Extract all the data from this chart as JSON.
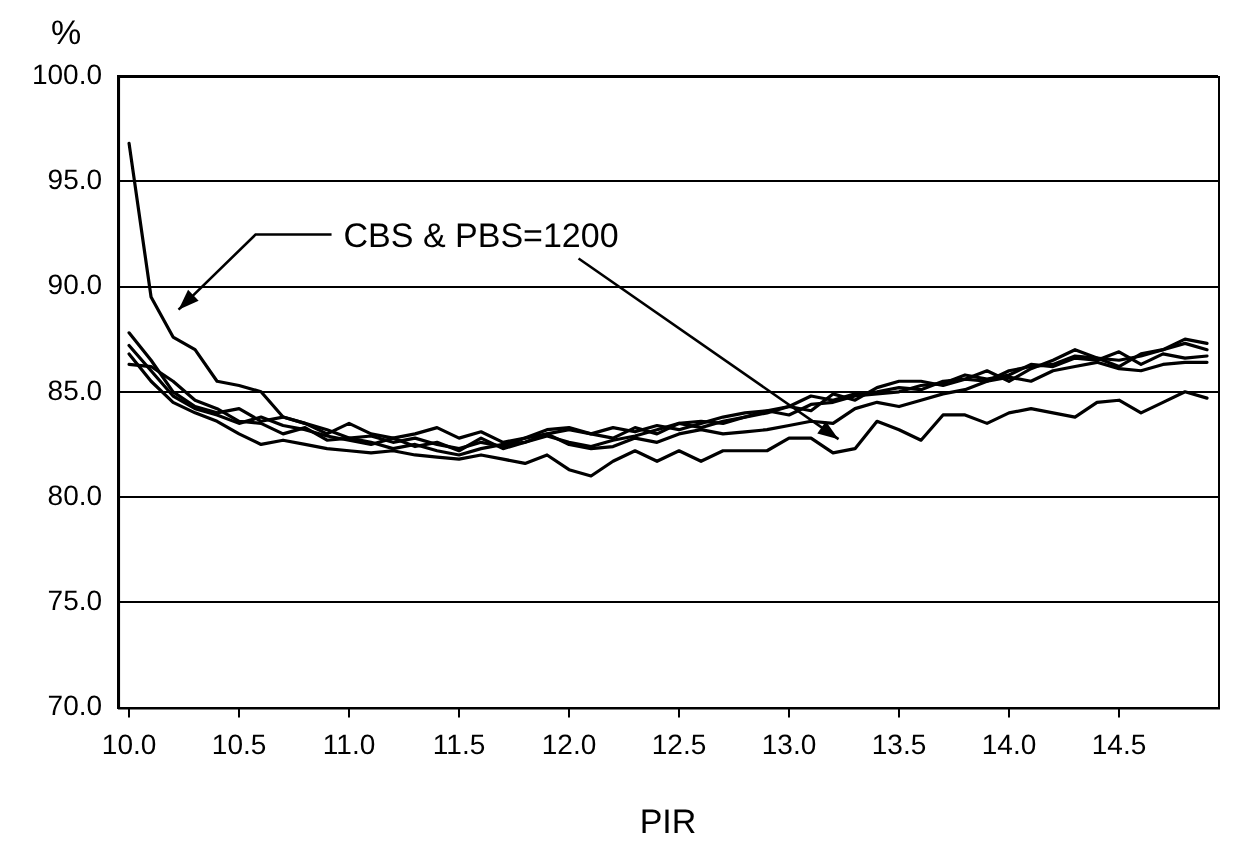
{
  "chart_data": {
    "type": "line",
    "xlabel": "PIR",
    "ylabel": "%",
    "x": [
      10.0,
      10.1,
      10.2,
      10.3,
      10.4,
      10.5,
      10.6,
      10.7,
      10.8,
      10.9,
      11.0,
      11.1,
      11.2,
      11.3,
      11.4,
      11.5,
      11.6,
      11.7,
      11.8,
      11.9,
      12.0,
      12.1,
      12.2,
      12.3,
      12.4,
      12.5,
      12.6,
      12.7,
      12.8,
      12.9,
      13.0,
      13.1,
      13.2,
      13.3,
      13.4,
      13.5,
      13.6,
      13.7,
      13.8,
      13.9,
      14.0,
      14.1,
      14.2,
      14.3,
      14.4,
      14.5,
      14.6,
      14.7,
      14.8,
      14.9
    ],
    "series": [
      {
        "color": "#000000",
        "values": [
          96.8,
          89.5,
          87.6,
          87.0,
          85.5,
          85.3,
          85.0,
          83.8,
          83.5,
          83.2,
          82.8,
          82.9,
          82.6,
          82.8,
          82.5,
          82.3,
          82.6,
          82.4,
          82.8,
          83.0,
          83.2,
          83.0,
          83.3,
          83.1,
          83.4,
          83.2,
          83.5,
          83.8,
          84.0,
          84.1,
          84.3,
          84.8,
          84.6,
          84.9,
          85.0,
          85.2,
          85.1,
          85.5,
          85.6,
          85.5,
          86.0,
          86.2,
          86.3,
          86.7,
          86.6,
          86.5,
          86.7,
          87.0,
          87.5,
          87.3
        ]
      },
      {
        "color": "#000000",
        "values": [
          87.8,
          86.5,
          85.0,
          84.3,
          84.0,
          84.2,
          83.6,
          83.8,
          83.5,
          83.0,
          83.5,
          83.0,
          82.8,
          83.0,
          83.3,
          82.8,
          83.1,
          82.6,
          82.8,
          83.2,
          83.3,
          83.0,
          82.8,
          83.3,
          83.0,
          83.5,
          83.3,
          83.6,
          83.8,
          84.0,
          84.3,
          84.1,
          84.9,
          84.6,
          85.2,
          85.5,
          85.5,
          85.3,
          85.6,
          86.0,
          85.5,
          86.1,
          86.5,
          87.0,
          86.6,
          86.2,
          86.8,
          87.0,
          87.3,
          87.0
        ]
      },
      {
        "color": "#000000",
        "values": [
          87.2,
          86.0,
          84.8,
          84.2,
          83.9,
          83.5,
          83.8,
          83.4,
          83.2,
          82.9,
          82.7,
          82.5,
          82.8,
          82.4,
          82.6,
          82.2,
          82.8,
          82.3,
          82.6,
          82.9,
          82.6,
          82.4,
          82.7,
          82.9,
          83.2,
          83.5,
          83.6,
          83.5,
          83.8,
          84.1,
          83.9,
          84.4,
          84.5,
          84.8,
          84.9,
          85.0,
          85.3,
          85.4,
          85.8,
          85.6,
          85.8,
          86.3,
          86.2,
          86.6,
          86.5,
          86.9,
          86.3,
          86.8,
          86.6,
          86.7
        ]
      },
      {
        "color": "#000000",
        "values": [
          86.3,
          86.2,
          85.5,
          84.6,
          84.2,
          83.6,
          83.5,
          83.0,
          83.3,
          82.7,
          82.8,
          82.6,
          82.3,
          82.5,
          82.2,
          82.0,
          82.3,
          82.5,
          82.6,
          83.0,
          82.5,
          82.3,
          82.4,
          82.8,
          82.6,
          83.0,
          83.2,
          83.0,
          83.1,
          83.2,
          83.4,
          83.6,
          83.5,
          84.2,
          84.5,
          84.3,
          84.6,
          84.9,
          85.1,
          85.5,
          85.7,
          85.5,
          86.0,
          86.2,
          86.4,
          86.1,
          86.0,
          86.3,
          86.4,
          86.4
        ]
      },
      {
        "color": "#000000",
        "values": [
          86.8,
          85.5,
          84.5,
          84.0,
          83.6,
          83.0,
          82.5,
          82.7,
          82.5,
          82.3,
          82.2,
          82.1,
          82.2,
          82.0,
          81.9,
          81.8,
          82.0,
          81.8,
          81.6,
          82.0,
          81.3,
          81.0,
          81.7,
          82.2,
          81.7,
          82.2,
          81.7,
          82.2,
          82.2,
          82.2,
          82.8,
          82.8,
          82.1,
          82.3,
          83.6,
          83.2,
          82.7,
          83.9,
          83.9,
          83.5,
          84.0,
          84.2,
          84.0,
          83.8,
          84.5,
          84.6,
          84.0,
          84.5,
          85.0,
          84.7
        ]
      }
    ],
    "xlim": [
      9.95,
      14.95
    ],
    "xticks": [
      {
        "value": 10.0,
        "label": "10.0"
      },
      {
        "value": 10.5,
        "label": "10.5"
      },
      {
        "value": 11.0,
        "label": "11.0"
      },
      {
        "value": 11.5,
        "label": "11.5"
      },
      {
        "value": 12.0,
        "label": "12.0"
      },
      {
        "value": 12.5,
        "label": "12.5"
      },
      {
        "value": 13.0,
        "label": "13.0"
      },
      {
        "value": 13.5,
        "label": "13.5"
      },
      {
        "value": 14.0,
        "label": "14.0"
      },
      {
        "value": 14.5,
        "label": "14.5"
      }
    ],
    "ylim": [
      70,
      100
    ],
    "yticks": [
      {
        "value": 70,
        "label": "70.0"
      },
      {
        "value": 75,
        "label": "75.0"
      },
      {
        "value": 80,
        "label": "80.0"
      },
      {
        "value": 85,
        "label": "85.0"
      },
      {
        "value": 90,
        "label": "90.0"
      },
      {
        "value": 95,
        "label": "95.0"
      },
      {
        "value": 100,
        "label": "100.0"
      }
    ],
    "grid": "y",
    "legend": false,
    "marker": "none",
    "line_style": "solid",
    "annotations": [
      "CBS & PBS=1200"
    ]
  }
}
